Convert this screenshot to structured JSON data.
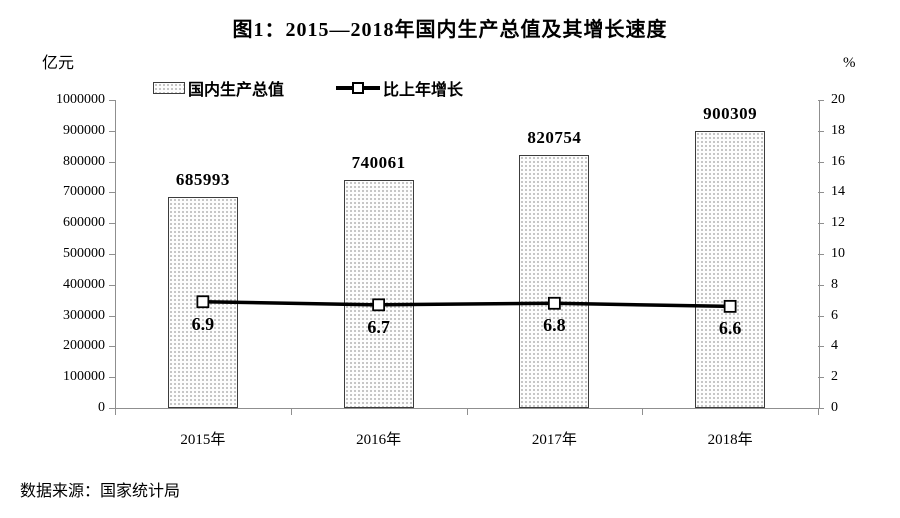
{
  "source_note": "数据来源：国家统计局",
  "chart_data": {
    "type": "bar",
    "title": "图1：2015—2018年国内生产总值及其增长速度",
    "categories": [
      "2015年",
      "2016年",
      "2017年",
      "2018年"
    ],
    "series": [
      {
        "name": "国内生产总值",
        "type": "bar",
        "axis": "left",
        "values": [
          685993,
          740061,
          820754,
          900309
        ],
        "labels": [
          "685993",
          "740061",
          "820754",
          "900309"
        ]
      },
      {
        "name": "比上年增长",
        "type": "line",
        "axis": "right",
        "values": [
          6.9,
          6.7,
          6.8,
          6.6
        ],
        "labels": [
          "6.9",
          "6.7",
          "6.8",
          "6.6"
        ]
      }
    ],
    "left_axis": {
      "unit": "亿元",
      "min": 0,
      "max": 1000000,
      "ticks": [
        0,
        100000,
        200000,
        300000,
        400000,
        500000,
        600000,
        700000,
        800000,
        900000,
        1000000
      ]
    },
    "right_axis": {
      "unit": "%",
      "min": 0,
      "max": 20,
      "ticks": [
        0,
        2,
        4,
        6,
        8,
        10,
        12,
        14,
        16,
        18,
        20
      ]
    },
    "grid": false,
    "legend_position": "top",
    "colors": {
      "text": "#000000",
      "axis_line": "#8f8f8f",
      "bar_border": "#3c3c3c",
      "bar_dots": "#b3b3b3",
      "line": "#000000",
      "marker_fill": "#ffffff"
    }
  }
}
